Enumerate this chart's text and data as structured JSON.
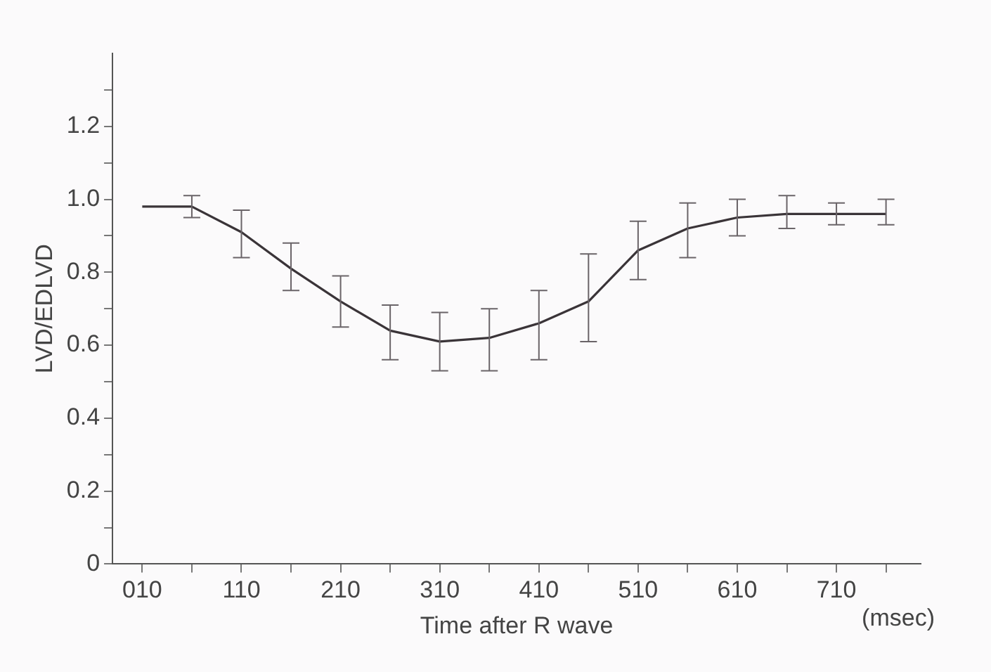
{
  "chart_data": {
    "type": "line",
    "xlabel": "Time after R wave",
    "ylabel": "LVD/EDLVD",
    "annotations": [
      "(msec)"
    ],
    "x": [
      10,
      60,
      110,
      160,
      210,
      260,
      310,
      360,
      410,
      460,
      510,
      560,
      610,
      660,
      710,
      760
    ],
    "series": [
      {
        "color": "#3a3438",
        "values": [
          0.98,
          0.98,
          0.91,
          0.81,
          0.72,
          0.64,
          0.61,
          0.62,
          0.66,
          0.72,
          0.86,
          0.92,
          0.95,
          0.96,
          0.96,
          0.96
        ],
        "errors": [
          null,
          [
            0.95,
            1.01
          ],
          [
            0.84,
            0.97
          ],
          [
            0.75,
            0.88
          ],
          [
            0.65,
            0.79
          ],
          [
            0.56,
            0.71
          ],
          [
            0.53,
            0.69
          ],
          [
            0.53,
            0.7
          ],
          [
            0.56,
            0.75
          ],
          [
            0.61,
            0.85
          ],
          [
            0.78,
            0.94
          ],
          [
            0.84,
            0.99
          ],
          [
            0.9,
            1.0
          ],
          [
            0.92,
            1.01
          ],
          [
            0.93,
            0.99
          ],
          [
            0.93,
            1.0
          ]
        ]
      }
    ],
    "xlim": [
      -20,
      795
    ],
    "xticks": [
      {
        "value": 10,
        "label": "010"
      },
      {
        "value": 60,
        "label": null
      },
      110,
      {
        "value": 160,
        "label": null
      },
      210,
      {
        "value": 260,
        "label": null
      },
      310,
      {
        "value": 360,
        "label": null
      },
      410,
      {
        "value": 460,
        "label": null
      },
      510,
      {
        "value": 560,
        "label": null
      },
      610,
      {
        "value": 660,
        "label": null
      },
      710,
      {
        "value": 760,
        "label": null
      }
    ],
    "ylim": [
      0,
      1.4
    ],
    "yticks": [
      0,
      {
        "value": 0.1,
        "label": null
      },
      0.2,
      {
        "value": 0.3,
        "label": null
      },
      0.4,
      {
        "value": 0.5,
        "label": null
      },
      0.6,
      {
        "value": 0.7,
        "label": null
      },
      0.8,
      {
        "value": 0.9,
        "label": null
      },
      {
        "value": 1,
        "label": "1.0"
      },
      {
        "value": 1.1,
        "label": null
      },
      1.2,
      {
        "value": 1.3,
        "label": null
      }
    ],
    "grid": false,
    "legend": false,
    "marker": "none",
    "line_style": "solid"
  }
}
